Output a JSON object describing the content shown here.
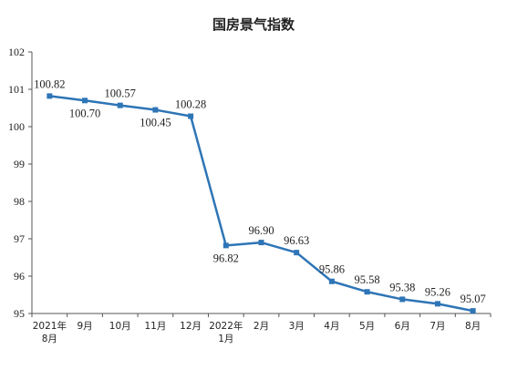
{
  "chart_data": {
    "type": "line",
    "title": "国房景气指数",
    "xlabel": "",
    "ylabel": "",
    "ylim": [
      95,
      102
    ],
    "yticks": [
      95,
      96,
      97,
      98,
      99,
      100,
      101,
      102
    ],
    "grid": false,
    "categories": [
      [
        "2021年",
        "8月"
      ],
      [
        "9月"
      ],
      [
        "10月"
      ],
      [
        "11月"
      ],
      [
        "12月"
      ],
      [
        "2022年",
        "1月"
      ],
      [
        "2月"
      ],
      [
        "3月"
      ],
      [
        "4月"
      ],
      [
        "5月"
      ],
      [
        "6月"
      ],
      [
        "7月"
      ],
      [
        "8月"
      ]
    ],
    "series": [
      {
        "color": "#2e75b6",
        "values": [
          100.82,
          100.7,
          100.57,
          100.45,
          100.28,
          96.82,
          96.9,
          96.63,
          95.86,
          95.58,
          95.38,
          95.26,
          95.07
        ],
        "labels": [
          "100.82",
          "100.70",
          "100.57",
          "100.45",
          "100.28",
          "96.82",
          "96.90",
          "96.63",
          "95.86",
          "95.58",
          "95.38",
          "95.26",
          "95.07"
        ]
      }
    ]
  }
}
